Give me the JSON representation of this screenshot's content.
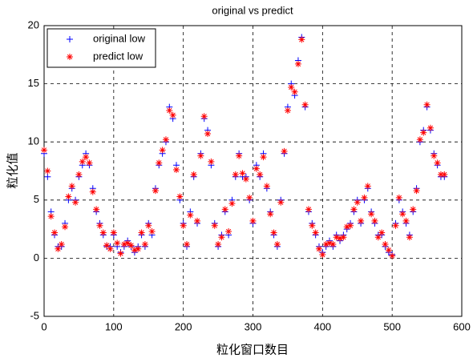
{
  "chart_data": {
    "type": "scatter",
    "title": "original vs predict",
    "xlabel": "粒化窗口数目",
    "ylabel": "粒化值",
    "x": [
      0,
      5,
      10,
      15,
      20,
      25,
      30,
      35,
      40,
      45,
      50,
      55,
      60,
      65,
      70,
      75,
      80,
      85,
      90,
      95,
      100,
      105,
      110,
      115,
      120,
      125,
      130,
      135,
      140,
      145,
      150,
      155,
      160,
      165,
      170,
      175,
      180,
      185,
      190,
      195,
      200,
      205,
      210,
      215,
      220,
      225,
      230,
      235,
      240,
      245,
      250,
      255,
      260,
      265,
      270,
      275,
      280,
      285,
      290,
      295,
      300,
      305,
      310,
      315,
      320,
      325,
      330,
      335,
      340,
      345,
      350,
      355,
      360,
      365,
      370,
      375,
      380,
      385,
      390,
      395,
      400,
      405,
      410,
      415,
      420,
      425,
      430,
      435,
      440,
      445,
      450,
      455,
      460,
      465,
      470,
      475,
      480,
      485,
      490,
      495,
      500,
      505,
      510,
      515,
      520,
      525,
      530,
      535,
      540,
      545,
      550,
      555,
      560,
      565,
      570,
      575
    ],
    "series": [
      {
        "name": "original low",
        "color": "#0000ff",
        "marker": "plus",
        "values": [
          9,
          7,
          4,
          2,
          1,
          1,
          3,
          5,
          6,
          5,
          7,
          8,
          9,
          8,
          6,
          4,
          3,
          2,
          1,
          1,
          2,
          1,
          0.5,
          1,
          1.5,
          1,
          0.5,
          1,
          2,
          1,
          3,
          2,
          6,
          8,
          9,
          10,
          13,
          12,
          8,
          5,
          3,
          1,
          4,
          7,
          3,
          9,
          12,
          11,
          8,
          3,
          1,
          2,
          4,
          2,
          5,
          7,
          9,
          7,
          7,
          5,
          3,
          8,
          7,
          9,
          6,
          4,
          2,
          1,
          5,
          9,
          13,
          15,
          14,
          17,
          19,
          13,
          4,
          3,
          2,
          1,
          0.5,
          1,
          1.5,
          1,
          2,
          1.5,
          2,
          2.5,
          3,
          4,
          5,
          3,
          5,
          6,
          4,
          3,
          2,
          2,
          1,
          0.5,
          0.3,
          3,
          5,
          4,
          3,
          2,
          4,
          6,
          10,
          11,
          13,
          11,
          9,
          8,
          7,
          7
        ]
      },
      {
        "name": "predict low",
        "color": "#ff0000",
        "marker": "star",
        "values": [
          9.3,
          7.5,
          3.6,
          2.2,
          0.8,
          1.2,
          2.7,
          5.3,
          6.2,
          4.8,
          7.2,
          8.3,
          8.7,
          8.2,
          5.7,
          4.2,
          2.8,
          2.2,
          1.1,
          0.8,
          2.2,
          1.3,
          0.4,
          1.2,
          1.3,
          1.1,
          0.7,
          0.8,
          2.2,
          1.2,
          2.8,
          2.3,
          5.8,
          8.2,
          9.3,
          10.2,
          12.7,
          12.3,
          7.6,
          5.3,
          2.8,
          1.2,
          3.7,
          7.2,
          3.2,
          8.8,
          12.2,
          10.7,
          8.3,
          2.8,
          1.2,
          1.8,
          4.2,
          2.3,
          4.7,
          7.2,
          8.8,
          7.3,
          6.8,
          5.2,
          3.2,
          7.7,
          7.2,
          8.7,
          6.2,
          3.8,
          2.2,
          1.2,
          4.8,
          9.2,
          12.7,
          14.7,
          14.3,
          16.7,
          18.8,
          13.2,
          4.2,
          2.8,
          2.2,
          0.8,
          0.3,
          1.2,
          1.3,
          1.2,
          1.8,
          1.7,
          1.8,
          2.7,
          2.8,
          4.2,
          4.8,
          3.2,
          5.2,
          6.2,
          3.8,
          3.2,
          1.8,
          2.2,
          1.2,
          0.7,
          0.2,
          2.8,
          5.2,
          3.8,
          3.2,
          1.8,
          4.2,
          5.8,
          10.2,
          10.8,
          13.2,
          11.2,
          8.8,
          8.2,
          7.2,
          7.2
        ]
      }
    ],
    "xlim": [
      0,
      600
    ],
    "xticks": [
      0,
      100,
      200,
      300,
      400,
      500,
      600
    ],
    "ylim": [
      -5,
      20
    ],
    "yticks": [
      -5,
      0,
      5,
      10,
      15,
      20
    ],
    "grid": true,
    "legend": "northwest"
  }
}
